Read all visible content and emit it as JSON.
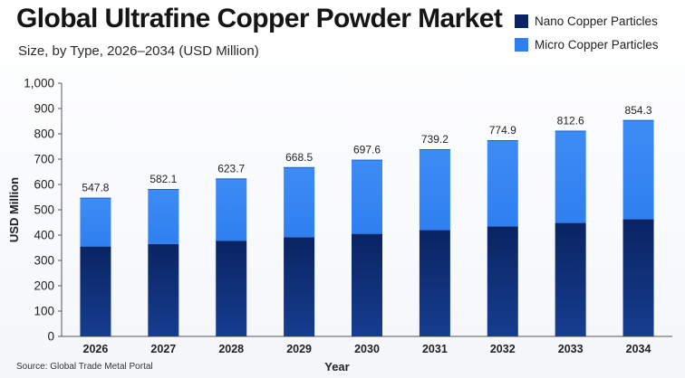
{
  "header": {
    "title": "Global Ultrafine Copper Powder Market",
    "subtitle": "Size, by Type, 2026–2034 (USD Million)"
  },
  "footer": {
    "source": "Source: Global Trade Metal Portal"
  },
  "colors": {
    "nano": "#0a2463",
    "micro": "#2f7ff0"
  },
  "chart_data": {
    "type": "bar",
    "stacked": true,
    "title": "Global Ultrafine Copper Powder Market",
    "subtitle": "Size, by Type, 2026–2034 (USD Million)",
    "xlabel": "Year",
    "ylabel": "USD Million",
    "ylim": [
      0,
      1000
    ],
    "yticks": [
      0,
      100,
      200,
      300,
      400,
      500,
      600,
      700,
      800,
      900,
      1000
    ],
    "ytick_labels": [
      "0",
      "100",
      "200",
      "300",
      "400",
      "500",
      "600",
      "700",
      "800",
      "900",
      "1,000"
    ],
    "categories": [
      "2026",
      "2027",
      "2028",
      "2029",
      "2030",
      "2031",
      "2032",
      "2033",
      "2034"
    ],
    "series": [
      {
        "name": "Nano Copper Particles",
        "values": [
          355,
          365,
          378,
          392,
          405,
          420,
          434,
          448,
          463
        ]
      },
      {
        "name": "Micro Copper Particles",
        "values": [
          192.8,
          217.1,
          245.7,
          276.5,
          292.6,
          319.2,
          340.9,
          364.6,
          391.3
        ]
      }
    ],
    "totals": [
      547.8,
      582.1,
      623.7,
      668.5,
      697.6,
      739.2,
      774.9,
      812.6,
      854.3
    ],
    "total_labels": [
      "547.8",
      "582.1",
      "623.7",
      "668.5",
      "697.6",
      "739.2",
      "774.9",
      "812.6",
      "854.3"
    ],
    "legend_position": "top-right",
    "grid": false
  }
}
